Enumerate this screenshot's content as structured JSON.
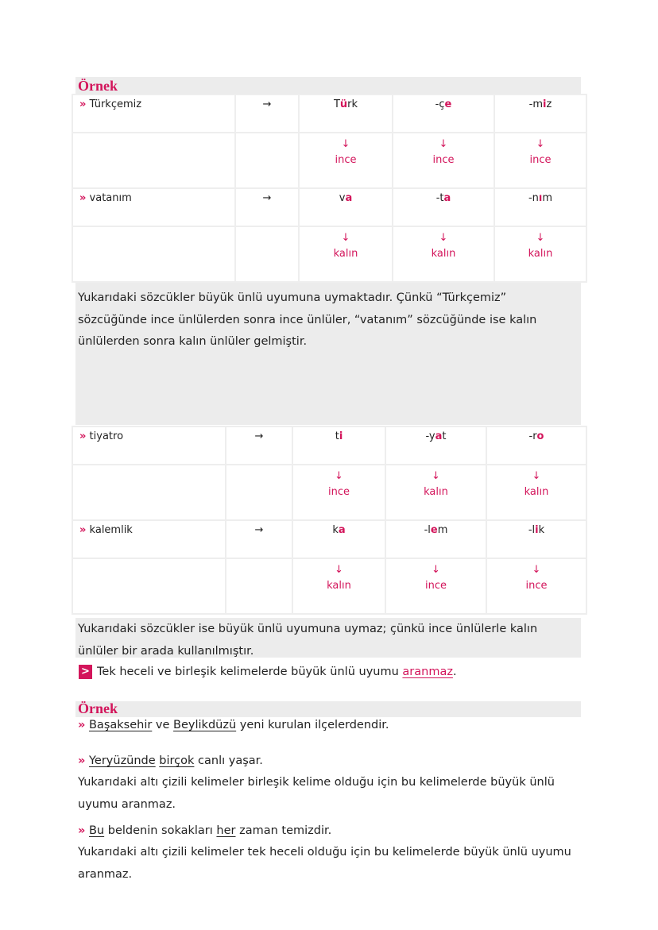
{
  "accent_color": "#d3155b",
  "example_label": "Örnek",
  "bullet": "»",
  "arrow_right": "→",
  "arrow_down": "↓",
  "tables": [
    {
      "rows": [
        {
          "word": "Türkçemiz",
          "syllables": [
            {
              "pre": "T",
              "vowel": "ü",
              "post": "rk"
            },
            {
              "pre": "-ç",
              "vowel": "e",
              "post": ""
            },
            {
              "pre": "-m",
              "vowel": "i",
              "post": "z"
            }
          ],
          "types": [
            "ince",
            "ince",
            "ince"
          ]
        },
        {
          "word": "vatanım",
          "syllables": [
            {
              "pre": "v",
              "vowel": "a",
              "post": ""
            },
            {
              "pre": "-t",
              "vowel": "a",
              "post": ""
            },
            {
              "pre": "-n",
              "vowel": "ı",
              "post": "m"
            }
          ],
          "types": [
            "kalın",
            "kalın",
            "kalın"
          ]
        }
      ]
    },
    {
      "rows": [
        {
          "word": "tiyatro",
          "syllables": [
            {
              "pre": "t",
              "vowel": "i",
              "post": ""
            },
            {
              "pre": "-y",
              "vowel": "a",
              "post": "t"
            },
            {
              "pre": "-r",
              "vowel": "o",
              "post": ""
            }
          ],
          "types": [
            "ince",
            "kalın",
            "kalın"
          ]
        },
        {
          "word": "kalemlik",
          "syllables": [
            {
              "pre": "k",
              "vowel": "a",
              "post": ""
            },
            {
              "pre": "-l",
              "vowel": "e",
              "post": "m"
            },
            {
              "pre": "-l",
              "vowel": "i",
              "post": "k"
            }
          ],
          "types": [
            "kalın",
            "ince",
            "ince"
          ]
        }
      ]
    }
  ],
  "paragraph1": "Yukarıdaki sözcükler büyük ünlü uyumuna uymaktadır. Çünkü “Türkçemiz” sözcüğünde ince ünlülerden sonra ince ünlüler, “vatanım” sözcüğünde ise kalın ünlülerden sonra kalın ünlüler gelmiştir.",
  "paragraph2": "Yukarıdaki sözcükler ise büyük ünlü uyumuna uymaz; çünkü ince ünlülerle kalın ünlüler bir arada kullanılmıştır.",
  "note": {
    "icon": ">",
    "text": "Tek heceli ve birleşik kelimelerde büyük ünlü uyumu ",
    "link": "aranmaz",
    "end": "."
  },
  "example2": {
    "line1": {
      "u1": "Başaksehir",
      "t1": " ve ",
      "u2": "Beylikdüzü",
      "t2": " yeni kurulan ilçelerdendir."
    },
    "line2": {
      "u1": "Yeryüzünde",
      "t1": " ",
      "u2": "birçok",
      "t2": " canlı yaşar."
    },
    "explain1": "Yukarıdaki altı çizili kelimeler birleşik kelime olduğu için bu kelimelerde büyük ünlü uyumu aranmaz.",
    "line3": {
      "u1": "Bu",
      "t1": " beldenin sokakları ",
      "u2": "her",
      "t2": " zaman temizdir."
    },
    "explain2": "Yukarıdaki altı çizili kelimeler tek heceli olduğu için bu kelimelerde büyük ünlü uyumu aranmaz."
  }
}
